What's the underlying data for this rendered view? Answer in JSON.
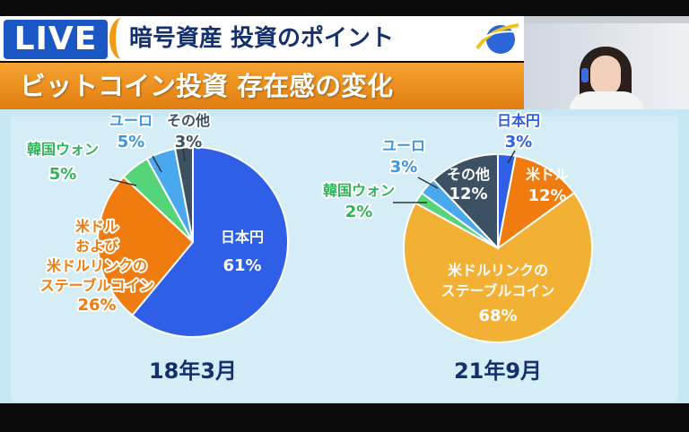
{
  "header": {
    "live_label": "LIVE",
    "topic": "暗号資産 投資のポイント",
    "headline": "ビットコイン投資 存在感の変化"
  },
  "colors": {
    "jpy": "#2f5fe6",
    "usd": "#f07b0e",
    "usdlink": "#f2b034",
    "krw": "#55d47a",
    "eur": "#4aa8ee",
    "other": "#3d5164"
  },
  "chart_data": [
    {
      "type": "pie",
      "title": "18年3月",
      "slices": [
        {
          "label": "日本円",
          "value": 61,
          "value_label": "61%",
          "color": "#2f5fe6"
        },
        {
          "label": "米ドル および 米ドルリンクの ステーブルコイン",
          "value": 26,
          "value_label": "26%",
          "color": "#f07b0e"
        },
        {
          "label": "韓国ウォン",
          "value": 5,
          "value_label": "5%",
          "color": "#55d47a"
        },
        {
          "label": "ユーロ",
          "value": 5,
          "value_label": "5%",
          "color": "#4aa8ee"
        },
        {
          "label": "その他",
          "value": 3,
          "value_label": "3%",
          "color": "#3d5164"
        }
      ]
    },
    {
      "type": "pie",
      "title": "21年9月",
      "slices": [
        {
          "label": "日本円",
          "value": 3,
          "value_label": "3%",
          "color": "#2f5fe6"
        },
        {
          "label": "米ドル",
          "value": 12,
          "value_label": "12%",
          "color": "#f07b0e"
        },
        {
          "label": "米ドルリンクの ステーブルコイン",
          "value": 68,
          "value_label": "68%",
          "color": "#f2b034"
        },
        {
          "label": "韓国ウォン",
          "value": 2,
          "value_label": "2%",
          "color": "#55d47a"
        },
        {
          "label": "ユーロ",
          "value": 3,
          "value_label": "3%",
          "color": "#4aa8ee"
        },
        {
          "label": "その他",
          "value": 12,
          "value_label": "12%",
          "color": "#3d5164"
        }
      ]
    }
  ]
}
